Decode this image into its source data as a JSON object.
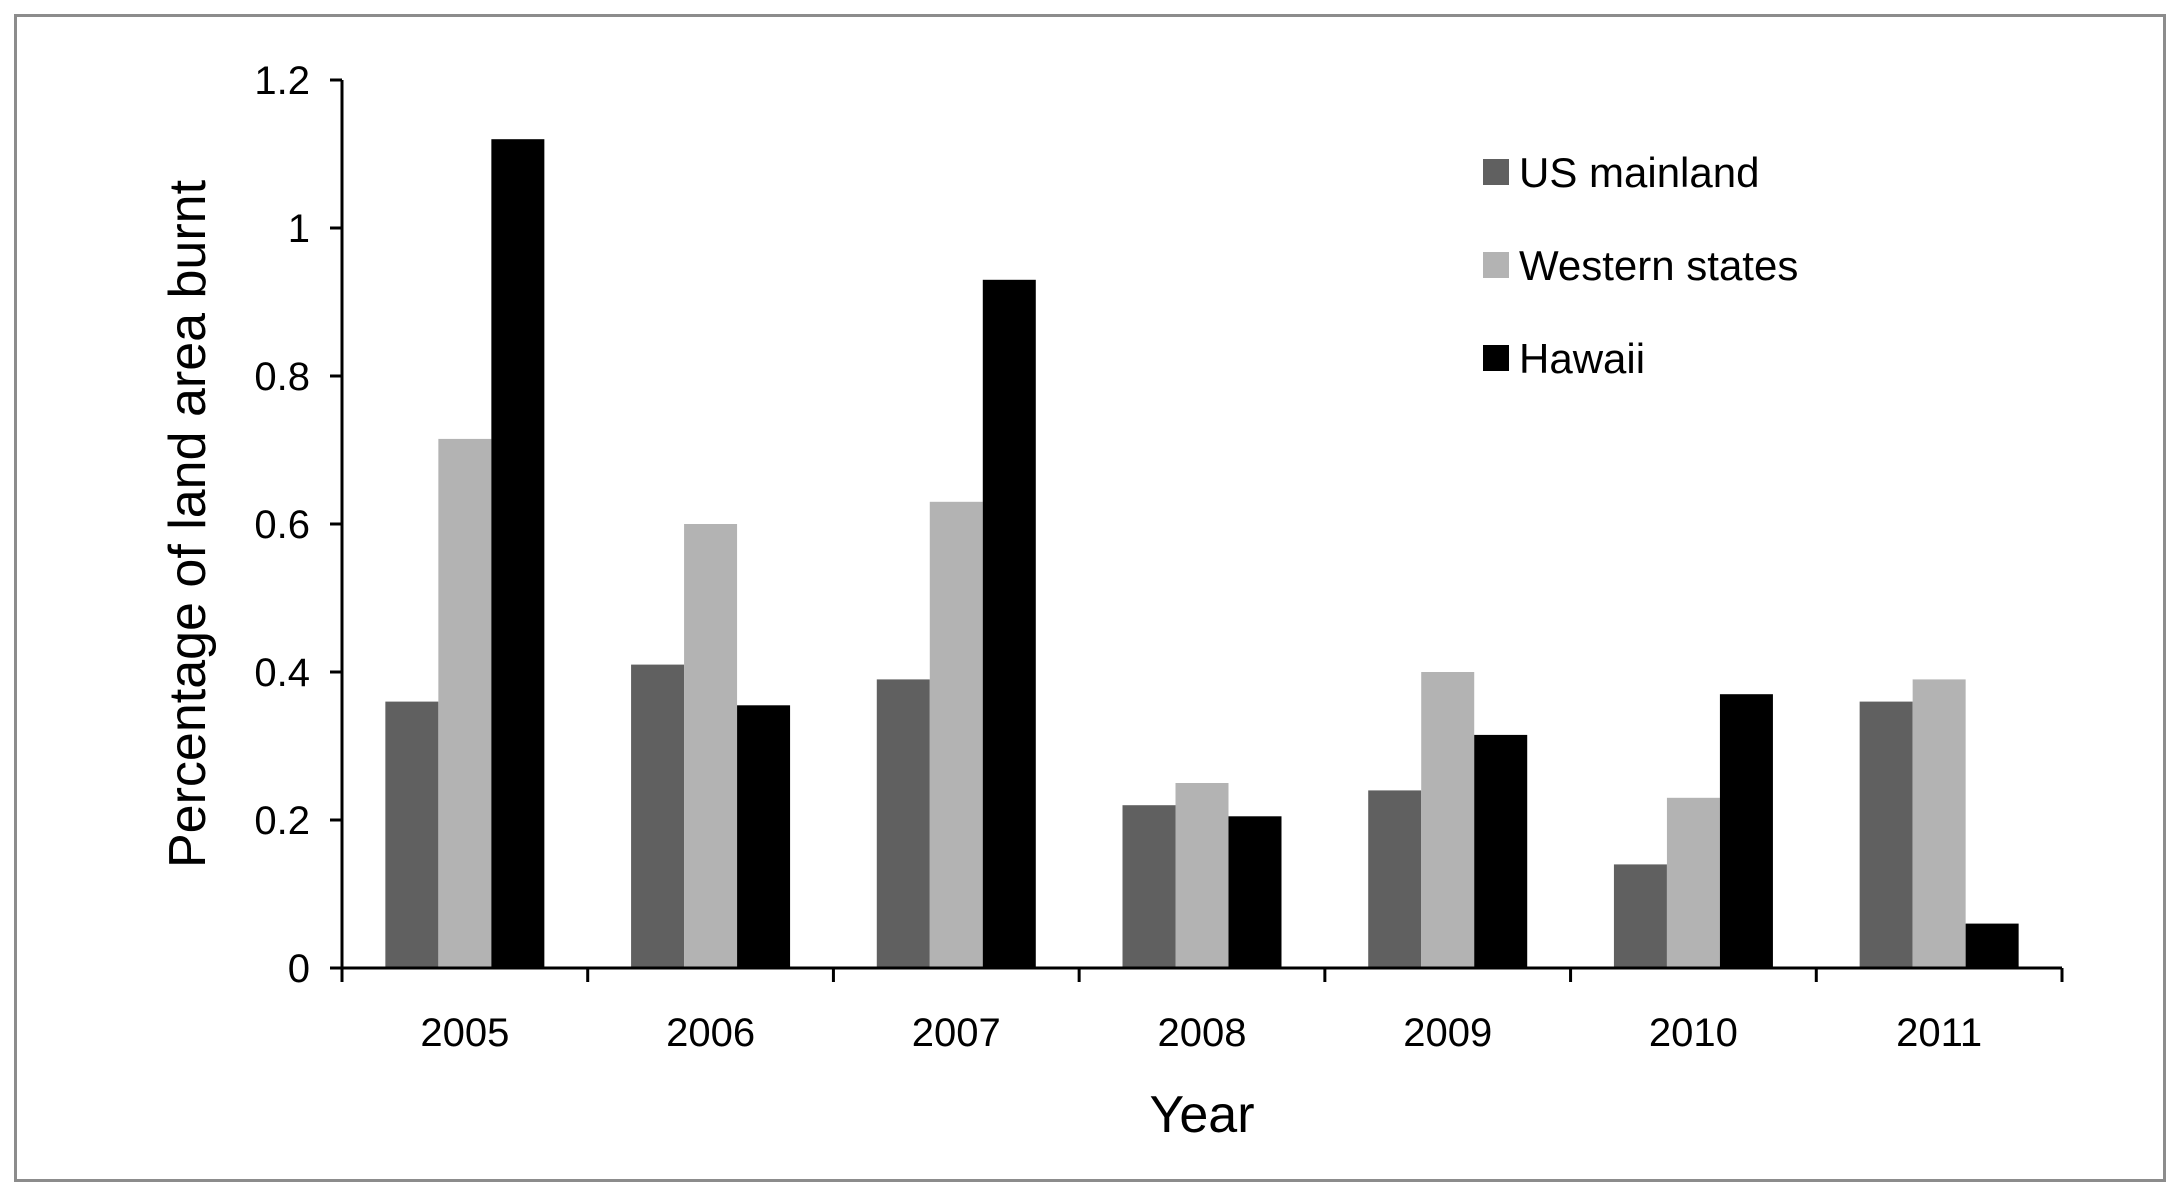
{
  "chart_data": {
    "type": "bar",
    "title": "",
    "xlabel": "Year",
    "ylabel": "Percentage of land area burnt",
    "categories": [
      "2005",
      "2006",
      "2007",
      "2008",
      "2009",
      "2010",
      "2011"
    ],
    "ylim": [
      0,
      1.2
    ],
    "yticks": [
      "0",
      "0.2",
      "0.4",
      "0.6",
      "0.8",
      "1",
      "1.2"
    ],
    "grid": false,
    "legend_position": "top-right",
    "series": [
      {
        "name": "US mainland",
        "color": "#606060",
        "values": [
          0.36,
          0.41,
          0.39,
          0.22,
          0.24,
          0.14,
          0.36
        ]
      },
      {
        "name": "Western states",
        "color": "#b3b3b3",
        "values": [
          0.715,
          0.6,
          0.63,
          0.25,
          0.4,
          0.23,
          0.39
        ]
      },
      {
        "name": "Hawaii",
        "color": "#000000",
        "values": [
          1.12,
          0.355,
          0.93,
          0.205,
          0.315,
          0.37,
          0.06
        ]
      }
    ]
  }
}
